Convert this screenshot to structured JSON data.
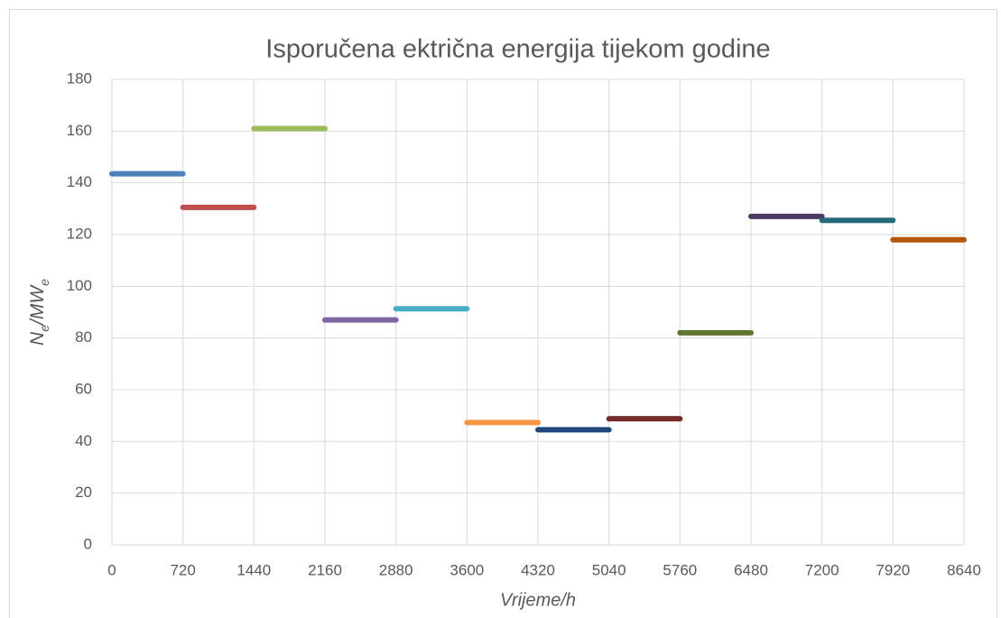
{
  "chart_data": {
    "type": "line",
    "title": "Isporučena ektrična energija tijekom godine",
    "xlabel": "Vrijeme/h",
    "ylabel": [
      "N",
      "e",
      "/MW",
      "e"
    ],
    "xlim": [
      0,
      8640
    ],
    "xticks": [
      0,
      720,
      1440,
      2160,
      2880,
      3600,
      4320,
      5040,
      5760,
      6480,
      7200,
      7920,
      8640
    ],
    "ylim": [
      0,
      180
    ],
    "yticks": [
      0,
      20,
      40,
      60,
      80,
      100,
      120,
      140,
      160,
      180
    ],
    "grid": true,
    "series": [
      {
        "color": "#4f81bd",
        "x": [
          0,
          720
        ],
        "values": [
          143.5,
          143.5
        ]
      },
      {
        "color": "#c0504d",
        "x": [
          720,
          1440
        ],
        "values": [
          130.5,
          130.5
        ]
      },
      {
        "color": "#9bbb59",
        "x": [
          1440,
          2160
        ],
        "values": [
          161,
          161
        ]
      },
      {
        "color": "#8064a2",
        "x": [
          2160,
          2880
        ],
        "values": [
          87,
          87
        ]
      },
      {
        "color": "#4bacc6",
        "x": [
          2880,
          3600
        ],
        "values": [
          91.3,
          91.3
        ]
      },
      {
        "color": "#f79646",
        "x": [
          3600,
          4320
        ],
        "values": [
          47.3,
          47.3
        ]
      },
      {
        "color": "#1f497d",
        "x": [
          4320,
          5040
        ],
        "values": [
          44.5,
          44.5
        ]
      },
      {
        "color": "#772c2a",
        "x": [
          5040,
          5760
        ],
        "values": [
          48.8,
          48.8
        ]
      },
      {
        "color": "#5f7530",
        "x": [
          5760,
          6480
        ],
        "values": [
          82,
          82
        ]
      },
      {
        "color": "#4d3b62",
        "x": [
          6480,
          7200
        ],
        "values": [
          127,
          127
        ]
      },
      {
        "color": "#276a7c",
        "x": [
          7200,
          7920
        ],
        "values": [
          125.5,
          125.5
        ]
      },
      {
        "color": "#b65708",
        "x": [
          7920,
          8640
        ],
        "values": [
          118,
          118
        ]
      }
    ]
  }
}
